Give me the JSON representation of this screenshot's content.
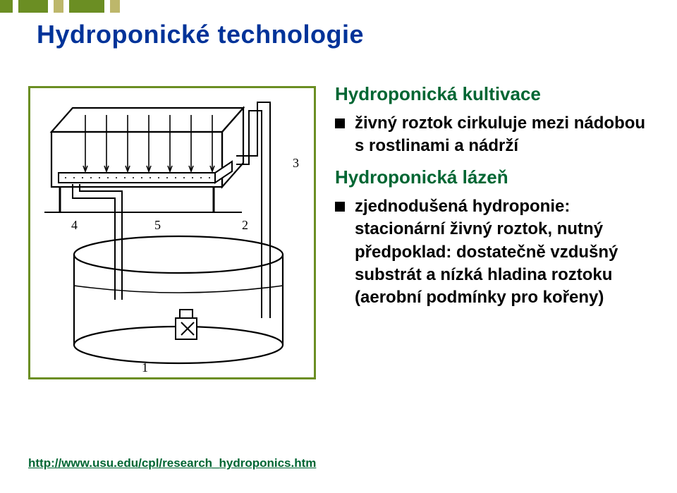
{
  "decor": {
    "boxes": [
      {
        "w": 18,
        "color": "#6b8e23"
      },
      {
        "w": 8,
        "color": "#ffffff"
      },
      {
        "w": 42,
        "color": "#6b8e23"
      },
      {
        "w": 8,
        "color": "#ffffff"
      },
      {
        "w": 14,
        "color": "#bdb76b"
      },
      {
        "w": 8,
        "color": "#ffffff"
      },
      {
        "w": 50,
        "color": "#6b8e23"
      },
      {
        "w": 8,
        "color": "#ffffff"
      },
      {
        "w": 14,
        "color": "#bdb76b"
      }
    ]
  },
  "title": {
    "text": "Hydroponické technologie",
    "color": "#003399"
  },
  "diagram": {
    "border_color": "#6b8e23",
    "labels": {
      "l1": "1",
      "l2": "2",
      "l3": "3",
      "l4": "4",
      "l5": "5"
    }
  },
  "content": {
    "heading1": "Hydroponická kultivace",
    "bullet1": "živný roztok cirkuluje mezi nádobou s rostlinami a nádrží",
    "heading2": "Hydroponická lázeň",
    "bullet2": "zjednodušená hydroponie: stacionární živný roztok, nutný předpoklad: dostatečně vzdušný substrát a nízká hladina roztoku",
    "bullet2_suffix": "(aerobní podmínky pro kořeny)",
    "heading_color": "#006633",
    "text_color": "#000000"
  },
  "footer": {
    "text": "http://www.usu.edu/cpl/research_hydroponics.htm",
    "color": "#006633"
  }
}
